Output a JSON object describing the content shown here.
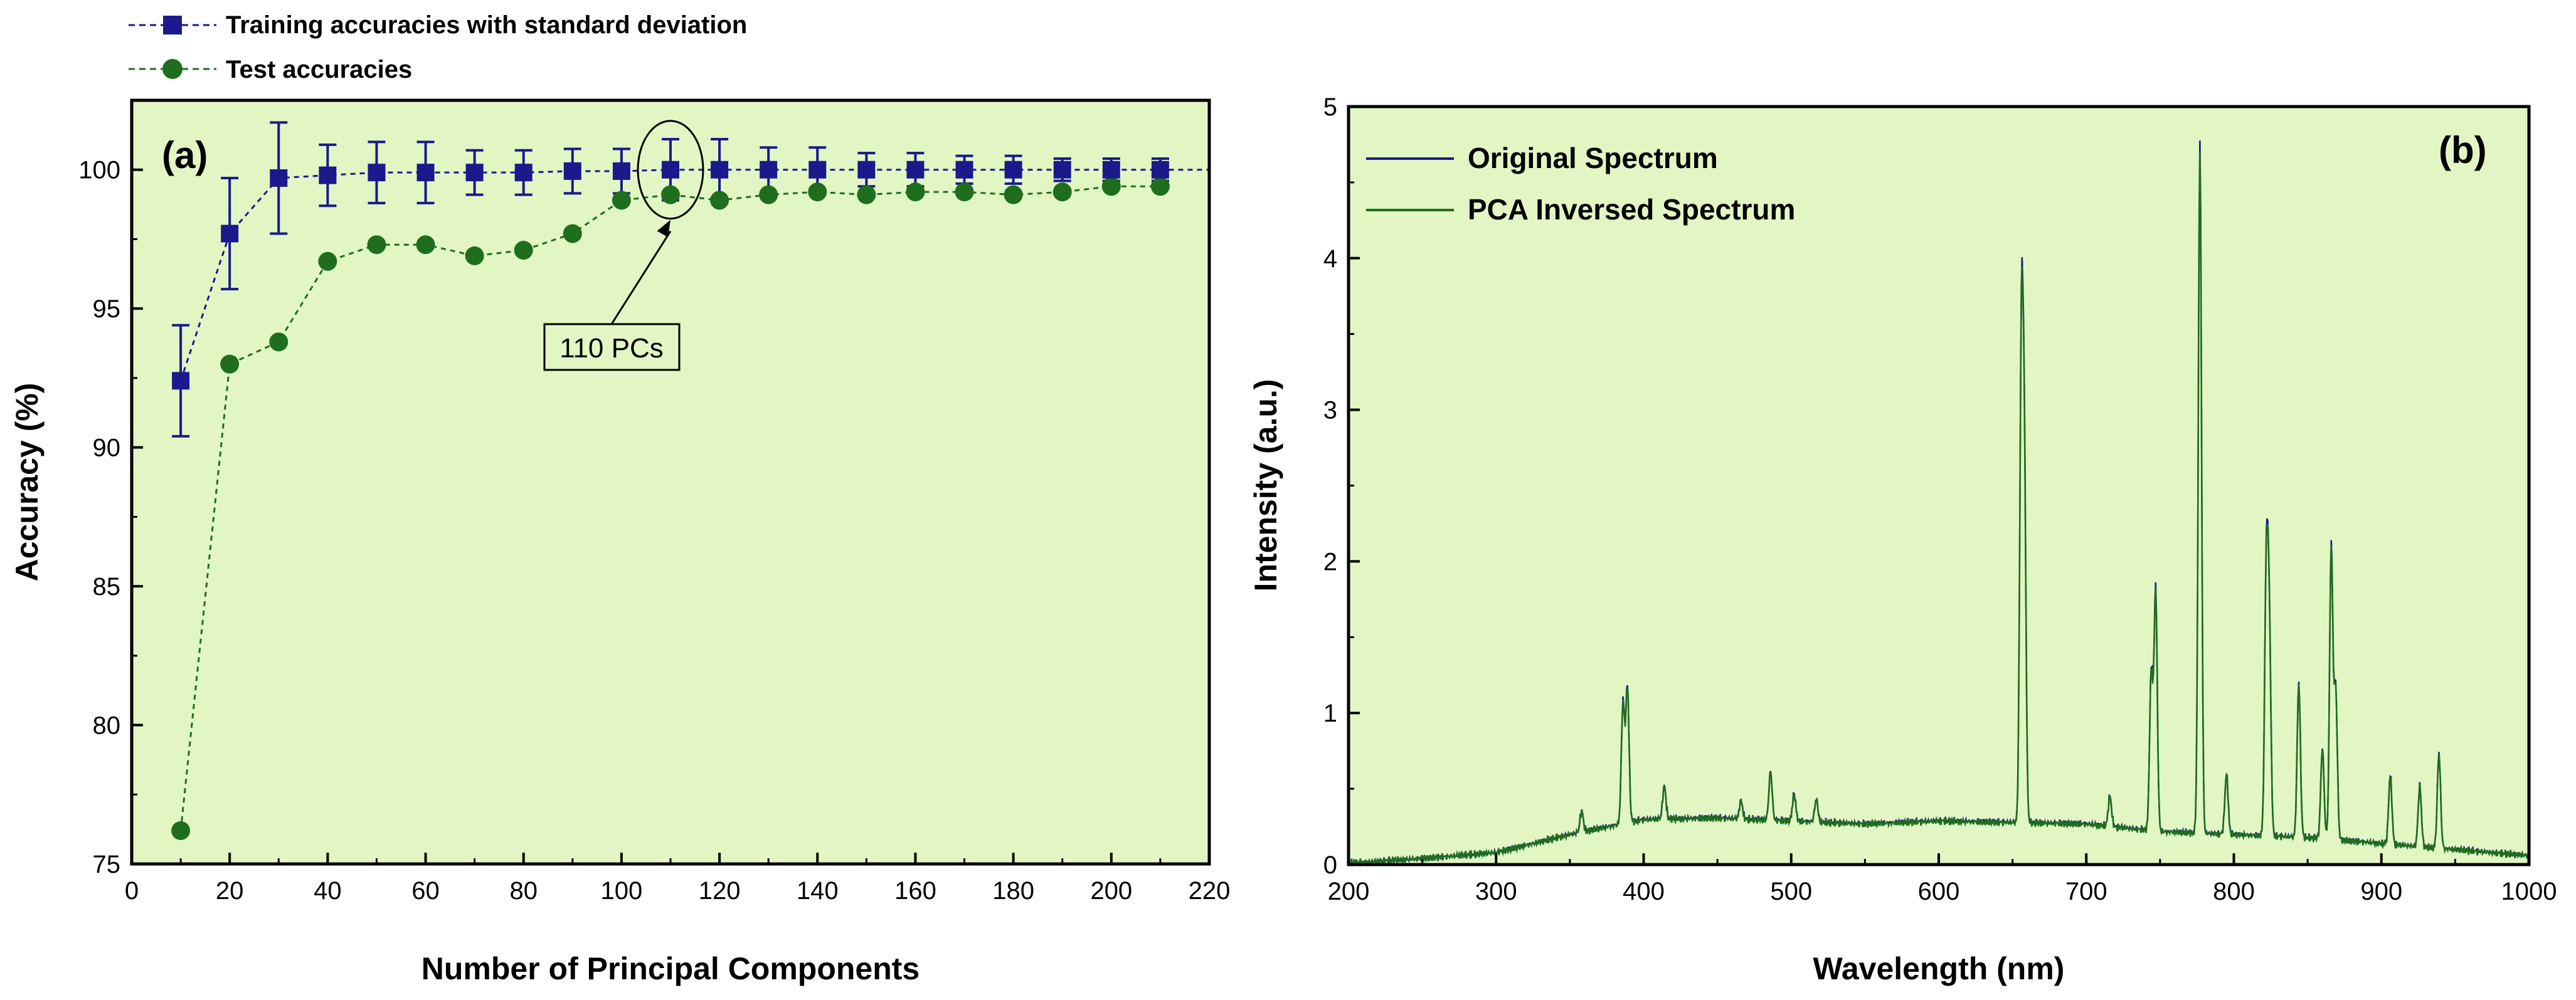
{
  "colors": {
    "plot_bg": "#e2f6c4",
    "training": "#1a1a8c",
    "test": "#1e6e1e",
    "axis": "#000000"
  },
  "chart_data": [
    {
      "type": "line",
      "panel_label": "(a)",
      "title": "",
      "xlabel": "Number of Principal Components",
      "ylabel": "Accuracy (%)",
      "xlim": [
        0,
        220
      ],
      "ylim": [
        75,
        102.5
      ],
      "x_ticks": [
        "0",
        "20",
        "40",
        "60",
        "80",
        "100",
        "120",
        "140",
        "160",
        "180",
        "200",
        "220"
      ],
      "y_ticks": [
        "75",
        "80",
        "85",
        "90",
        "95",
        "100"
      ],
      "grid": false,
      "legend": [
        "Training accuracies with standard deviation",
        "Test accuracies"
      ],
      "legend_placement": "above-left",
      "annotation": {
        "text": "110 PCs",
        "x": 110,
        "y": 100
      },
      "series": [
        {
          "name": "Training accuracies with standard deviation",
          "marker": "square",
          "x": [
            10,
            20,
            30,
            40,
            50,
            60,
            70,
            80,
            90,
            100,
            110,
            120,
            130,
            140,
            150,
            160,
            170,
            180,
            190,
            200,
            210
          ],
          "y": [
            92.4,
            97.7,
            99.7,
            99.8,
            99.9,
            99.9,
            99.9,
            99.9,
            99.95,
            99.95,
            100,
            100,
            100,
            100,
            100,
            100,
            100,
            100,
            100,
            100,
            100
          ],
          "error": [
            2.0,
            2.0,
            2.0,
            1.1,
            1.1,
            1.1,
            0.8,
            0.8,
            0.8,
            0.8,
            1.1,
            1.1,
            0.8,
            0.8,
            0.6,
            0.6,
            0.5,
            0.5,
            0.4,
            0.4,
            0.4
          ]
        },
        {
          "name": "Test accuracies",
          "marker": "circle",
          "x": [
            10,
            20,
            30,
            40,
            50,
            60,
            70,
            80,
            90,
            100,
            110,
            120,
            130,
            140,
            150,
            160,
            170,
            180,
            190,
            200,
            210
          ],
          "y": [
            76.2,
            93.0,
            93.8,
            96.7,
            97.3,
            97.3,
            96.9,
            97.1,
            97.7,
            98.9,
            99.1,
            98.9,
            99.1,
            99.2,
            99.1,
            99.2,
            99.2,
            99.1,
            99.2,
            99.4,
            99.4
          ]
        }
      ]
    },
    {
      "type": "line",
      "panel_label": "(b)",
      "title": "",
      "xlabel": "Wavelength (nm)",
      "ylabel": "Intensity (a.u.)",
      "xlim": [
        200,
        1000
      ],
      "ylim": [
        0,
        5
      ],
      "x_ticks": [
        "200",
        "300",
        "400",
        "500",
        "600",
        "700",
        "800",
        "900",
        "1000"
      ],
      "y_ticks": [
        "0",
        "1",
        "2",
        "3",
        "4",
        "5"
      ],
      "grid": false,
      "legend": [
        "Original Spectrum",
        "PCA Inversed Spectrum"
      ],
      "legend_placement": "top-left",
      "baseline": [
        [
          200,
          0.01
        ],
        [
          250,
          0.04
        ],
        [
          300,
          0.08
        ],
        [
          350,
          0.2
        ],
        [
          400,
          0.3
        ],
        [
          450,
          0.31
        ],
        [
          500,
          0.29
        ],
        [
          550,
          0.27
        ],
        [
          600,
          0.29
        ],
        [
          650,
          0.28
        ],
        [
          700,
          0.27
        ],
        [
          750,
          0.22
        ],
        [
          800,
          0.2
        ],
        [
          850,
          0.18
        ],
        [
          900,
          0.14
        ],
        [
          950,
          0.1
        ],
        [
          1000,
          0.06
        ]
      ],
      "peaks": [
        {
          "center": 358,
          "height": 0.14
        },
        {
          "center": 386,
          "height": 0.8
        },
        {
          "center": 389,
          "height": 0.9
        },
        {
          "center": 414,
          "height": 0.22
        },
        {
          "center": 466,
          "height": 0.12
        },
        {
          "center": 486,
          "height": 0.32
        },
        {
          "center": 502,
          "height": 0.18
        },
        {
          "center": 517,
          "height": 0.15
        },
        {
          "center": 656,
          "height": 3.1
        },
        {
          "center": 658,
          "height": 2.3
        },
        {
          "center": 716,
          "height": 0.2
        },
        {
          "center": 744,
          "height": 1.05
        },
        {
          "center": 747,
          "height": 1.6
        },
        {
          "center": 777,
          "height": 4.55
        },
        {
          "center": 795,
          "height": 0.4
        },
        {
          "center": 822,
          "height": 1.75
        },
        {
          "center": 824,
          "height": 1.35
        },
        {
          "center": 844,
          "height": 1.02
        },
        {
          "center": 860,
          "height": 0.6
        },
        {
          "center": 866,
          "height": 1.95
        },
        {
          "center": 869,
          "height": 1.0
        },
        {
          "center": 906,
          "height": 0.46
        },
        {
          "center": 926,
          "height": 0.4
        },
        {
          "center": 939,
          "height": 0.63
        }
      ]
    }
  ]
}
